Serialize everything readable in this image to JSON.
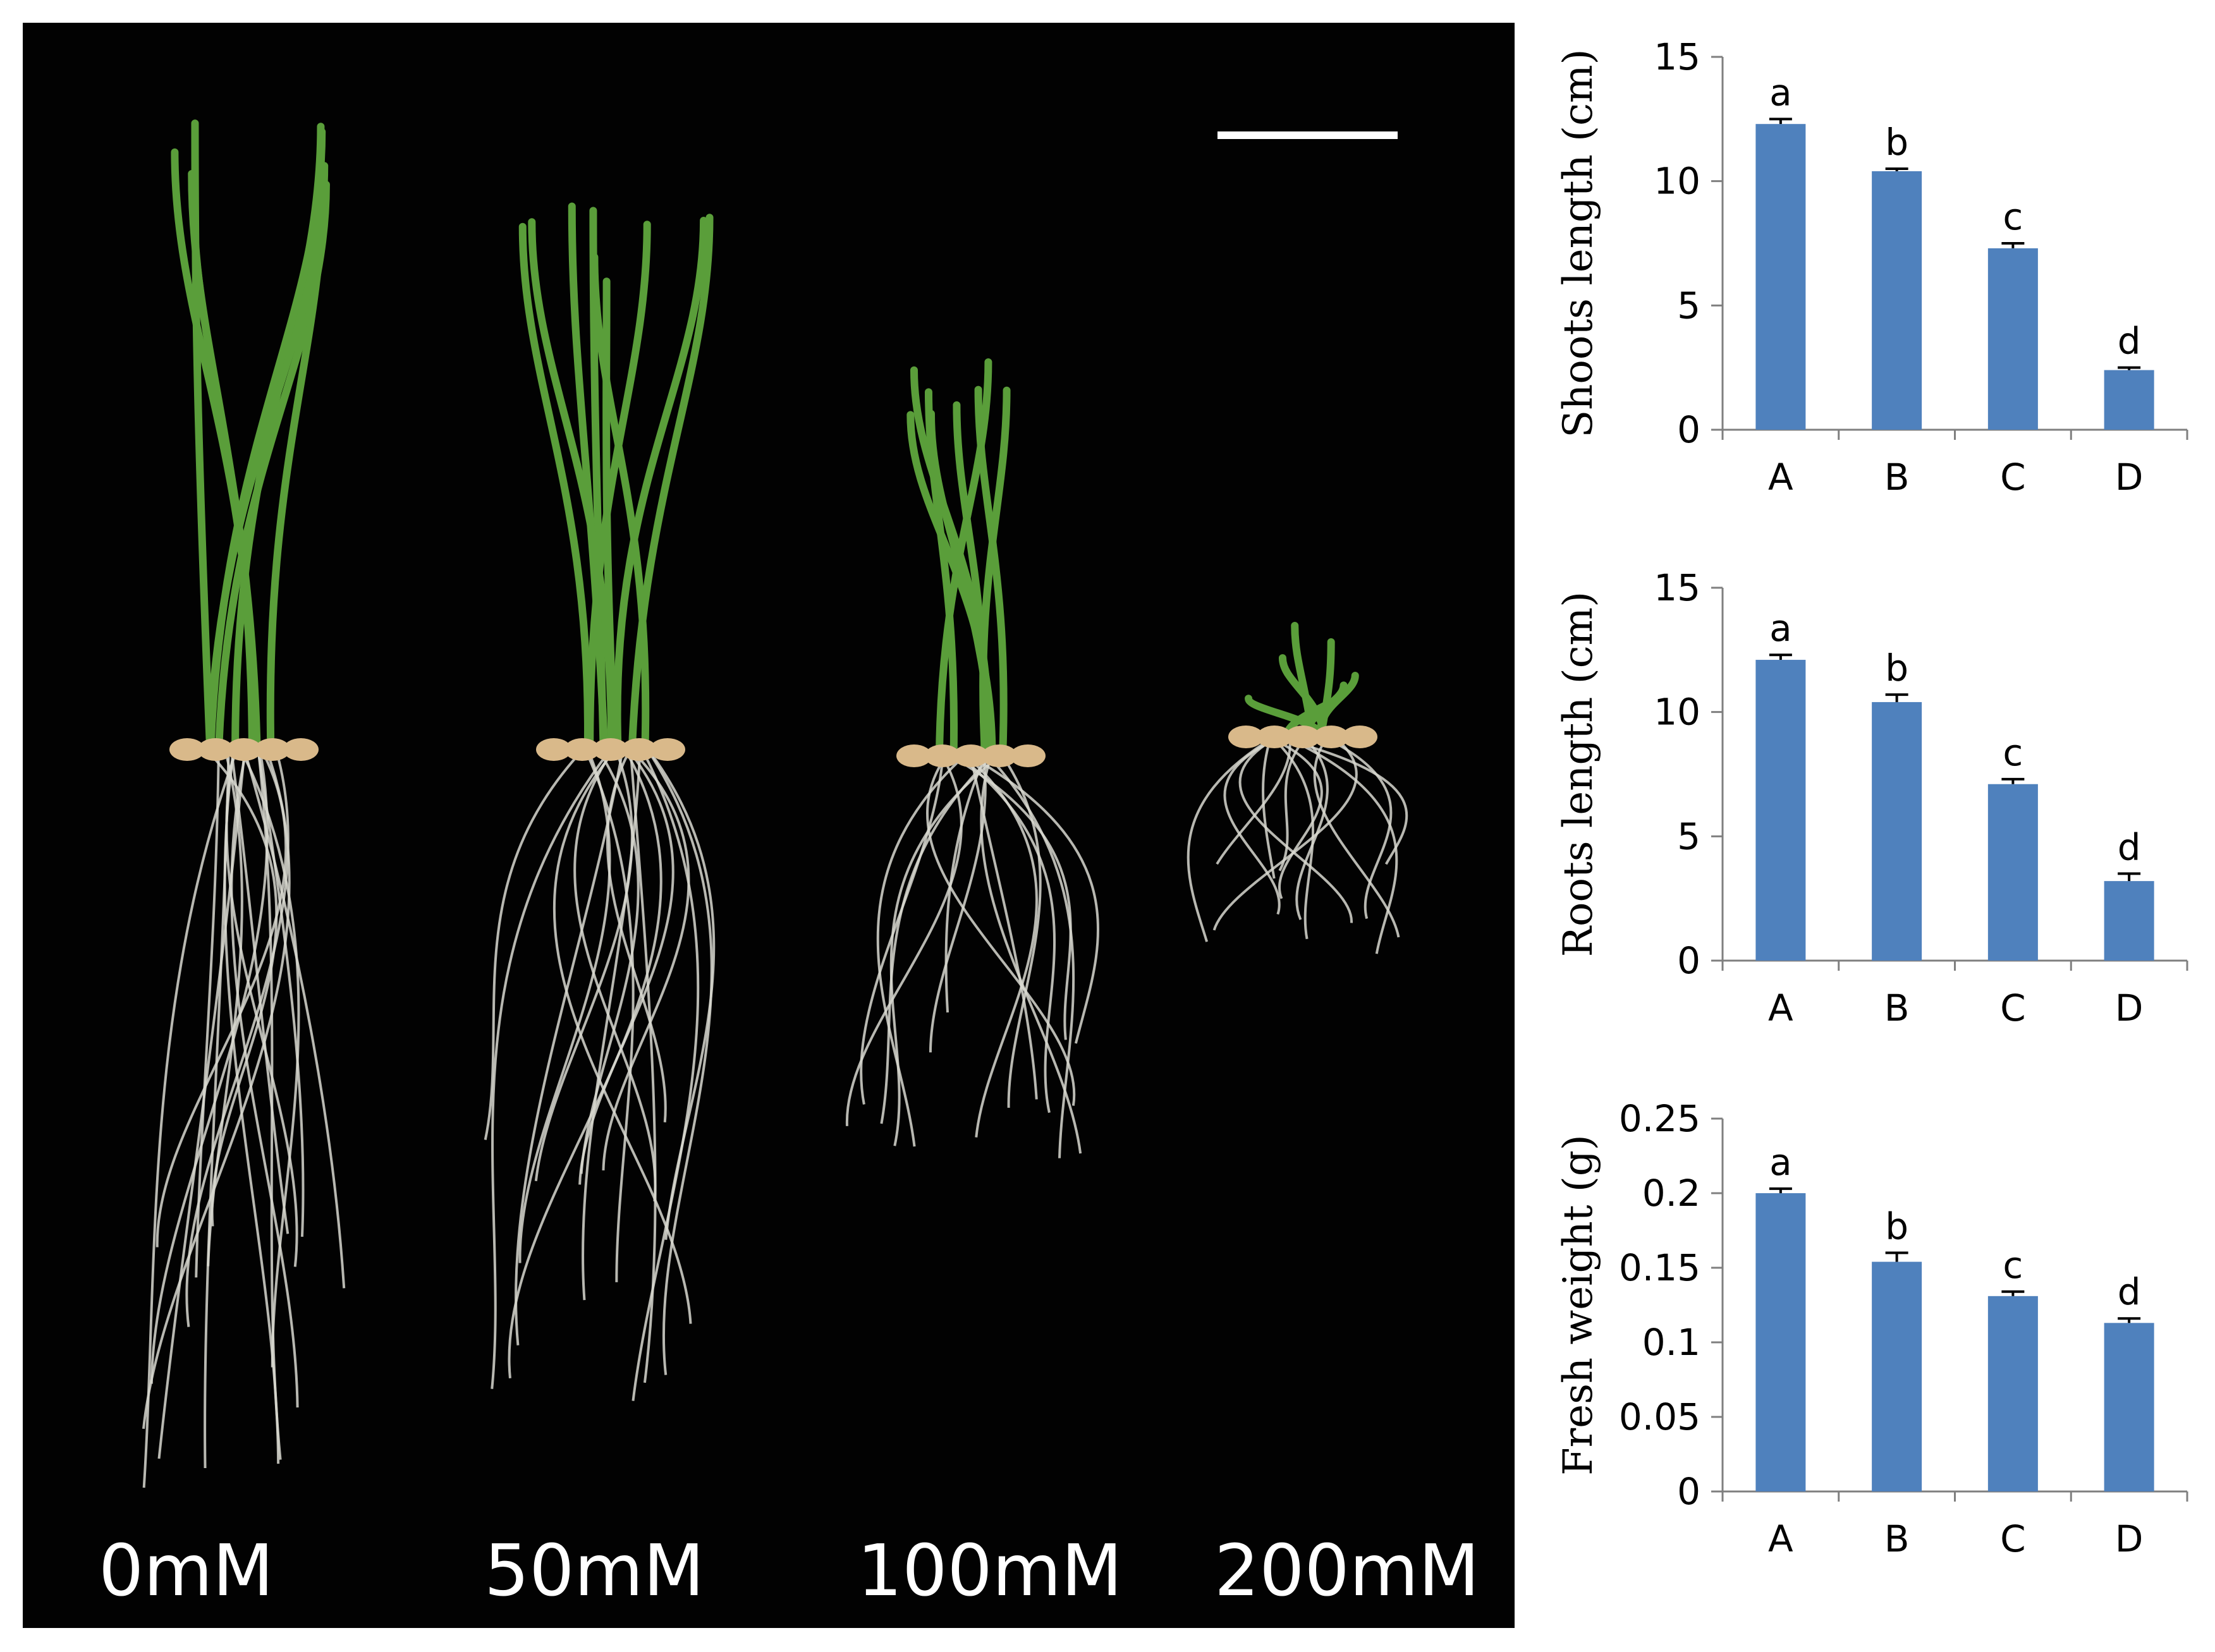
{
  "photo": {
    "concentration_labels": [
      "0mM",
      "50mM",
      "100mM",
      "200mM"
    ],
    "background_color": "#020202",
    "leaf_color": "#5a9e3a",
    "root_color": "#d8d8d0"
  },
  "chart_data": [
    {
      "type": "bar",
      "categories": [
        "A",
        "B",
        "C",
        "D"
      ],
      "values": [
        12.3,
        10.4,
        7.3,
        2.4
      ],
      "errors": [
        0.2,
        0.1,
        0.2,
        0.1
      ],
      "significance": [
        "a",
        "b",
        "c",
        "d"
      ],
      "ylabel": "Shoots length (cm)",
      "ylim": [
        0,
        15
      ],
      "yticks": [
        "0",
        "5",
        "10",
        "15"
      ],
      "bar_color": "#4f81bd"
    },
    {
      "type": "bar",
      "categories": [
        "A",
        "B",
        "C",
        "D"
      ],
      "values": [
        12.1,
        10.4,
        7.1,
        3.2
      ],
      "errors": [
        0.2,
        0.3,
        0.2,
        0.3
      ],
      "significance": [
        "a",
        "b",
        "c",
        "d"
      ],
      "ylabel": "Roots length (cm)",
      "ylim": [
        0,
        15
      ],
      "yticks": [
        "0",
        "5",
        "10",
        "15"
      ],
      "bar_color": "#4f81bd"
    },
    {
      "type": "bar",
      "categories": [
        "A",
        "B",
        "C",
        "D"
      ],
      "values": [
        0.2,
        0.154,
        0.131,
        0.113
      ],
      "errors": [
        0.003,
        0.006,
        0.003,
        0.003
      ],
      "significance": [
        "a",
        "b",
        "c",
        "d"
      ],
      "ylabel": "Fresh weight (g)",
      "ylim": [
        0,
        0.25
      ],
      "yticks": [
        "0",
        "0.05",
        "0.1",
        "0.15",
        "0.2",
        "0.25"
      ],
      "bar_color": "#4f81bd"
    }
  ]
}
